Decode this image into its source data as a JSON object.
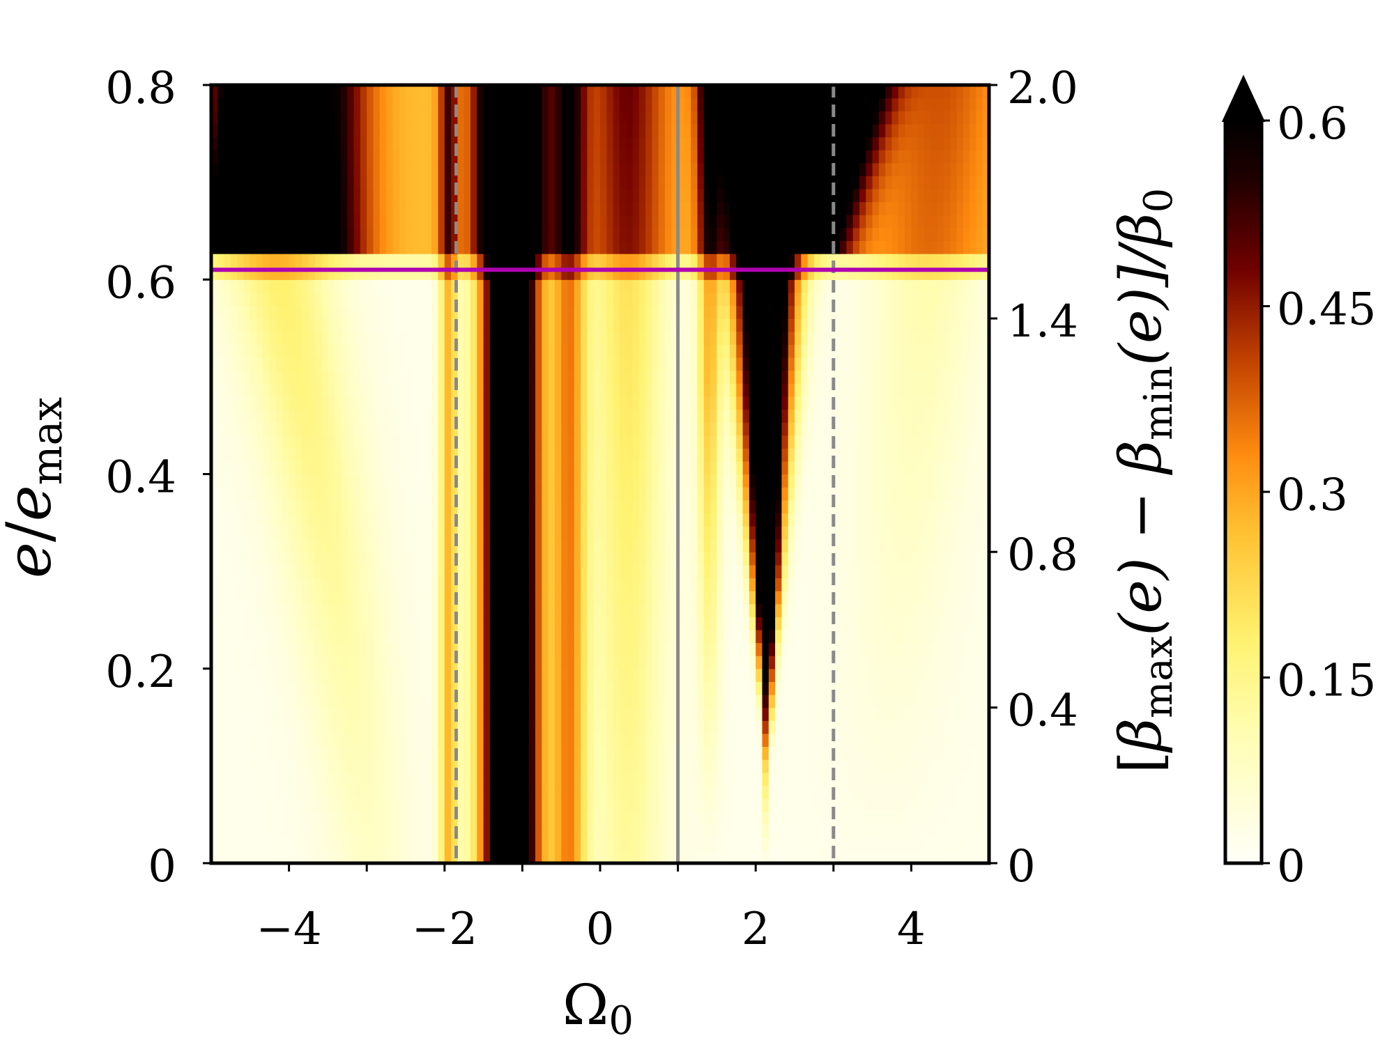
{
  "chart_data": {
    "type": "heatmap",
    "title": "",
    "x": {
      "range": [
        -5,
        5
      ],
      "ticks": [
        -4,
        -3,
        -2,
        -1,
        0,
        1,
        2,
        3,
        4
      ],
      "tick_labels": [
        {
          "value": -4,
          "label": "−4"
        },
        {
          "value": -2,
          "label": "−2"
        },
        {
          "value": 0,
          "label": "0"
        },
        {
          "value": 2,
          "label": "2"
        },
        {
          "value": 4,
          "label": "4"
        }
      ],
      "label": "Ω",
      "label_sub": "0"
    },
    "y_left": {
      "range": [
        0,
        0.8
      ],
      "ticks": [
        0,
        0.2,
        0.4,
        0.6,
        0.8
      ],
      "tick_labels": [
        "0",
        "0.2",
        "0.4",
        "0.6",
        "0.8"
      ],
      "label_main": "e",
      "label_slash": "/",
      "label_e": "e",
      "label_sub": "max"
    },
    "y_right": {
      "range": [
        0,
        2.0
      ],
      "ticks": [
        0,
        0.4,
        0.8,
        1.4,
        2.0
      ],
      "tick_labels": [
        "0",
        "0.4",
        "0.8",
        "1.4",
        "2.0"
      ],
      "label": "[β(e) − β(e)]/β",
      "label_parts": {
        "open": "[",
        "beta1": "β",
        "sub1": "max",
        "arg1": "(e) − ",
        "beta2": "β",
        "sub2": "min",
        "arg2": "(e)]/",
        "beta3": "β",
        "sub3": "0"
      }
    },
    "colorbar": {
      "range": [
        0,
        0.6
      ],
      "ticks": [
        0,
        0.15,
        0.3,
        0.45,
        0.6
      ],
      "tick_labels": [
        "0",
        "0.15",
        "0.3",
        "0.45",
        "0.6"
      ],
      "extend": "max",
      "colormap": "afmhot_r"
    },
    "overlays": {
      "horizontal_line": {
        "y": 0.61,
        "color": "#b000b0"
      },
      "vertical_solid": {
        "x": 1.0,
        "color": "#8a8a8a"
      },
      "vertical_dashed": [
        {
          "x": -1.85,
          "color": "#8a8a8a"
        },
        {
          "x": 3.0,
          "color": "#8a8a8a"
        }
      ]
    },
    "grid": false
  }
}
